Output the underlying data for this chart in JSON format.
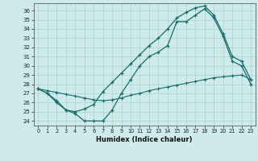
{
  "xlabel": "Humidex (Indice chaleur)",
  "xlim": [
    -0.5,
    23.5
  ],
  "ylim": [
    23.5,
    36.8
  ],
  "yticks": [
    24,
    25,
    26,
    27,
    28,
    29,
    30,
    31,
    32,
    33,
    34,
    35,
    36
  ],
  "xticks": [
    0,
    1,
    2,
    3,
    4,
    5,
    6,
    7,
    8,
    9,
    10,
    11,
    12,
    13,
    14,
    15,
    16,
    17,
    18,
    19,
    20,
    21,
    22,
    23
  ],
  "bg_color": "#ceeaea",
  "grid_color": "#a8d4d4",
  "line_color": "#1a6b6b",
  "line1_x": [
    0,
    1,
    2,
    3,
    4,
    5,
    6,
    7,
    8,
    9,
    10,
    11,
    12,
    13,
    14,
    15,
    16,
    17,
    18,
    19,
    20,
    21,
    22,
    23
  ],
  "line1_y": [
    27.5,
    27.0,
    26.0,
    25.2,
    24.8,
    24.0,
    24.0,
    24.0,
    25.2,
    27.0,
    28.5,
    30.0,
    31.0,
    31.5,
    32.2,
    34.8,
    34.8,
    35.5,
    36.2,
    35.2,
    33.2,
    30.5,
    30.0,
    28.0
  ],
  "line2_x": [
    0,
    1,
    2,
    3,
    4,
    5,
    6,
    7,
    8,
    9,
    10,
    11,
    12,
    13,
    14,
    15,
    16,
    17,
    18,
    19,
    20,
    21,
    22,
    23
  ],
  "line2_y": [
    27.5,
    27.0,
    26.2,
    25.2,
    25.0,
    25.3,
    25.8,
    27.2,
    28.2,
    29.2,
    30.2,
    31.2,
    32.2,
    33.0,
    34.0,
    35.2,
    35.8,
    36.3,
    36.5,
    35.5,
    33.5,
    31.0,
    30.5,
    28.5
  ],
  "line3_x": [
    0,
    1,
    2,
    3,
    4,
    5,
    6,
    7,
    8,
    9,
    10,
    11,
    12,
    13,
    14,
    15,
    16,
    17,
    18,
    19,
    20,
    21,
    22,
    23
  ],
  "line3_y": [
    27.5,
    27.3,
    27.1,
    26.9,
    26.7,
    26.5,
    26.3,
    26.2,
    26.3,
    26.5,
    26.8,
    27.0,
    27.3,
    27.5,
    27.7,
    27.9,
    28.1,
    28.3,
    28.5,
    28.7,
    28.8,
    28.9,
    29.0,
    28.5
  ]
}
